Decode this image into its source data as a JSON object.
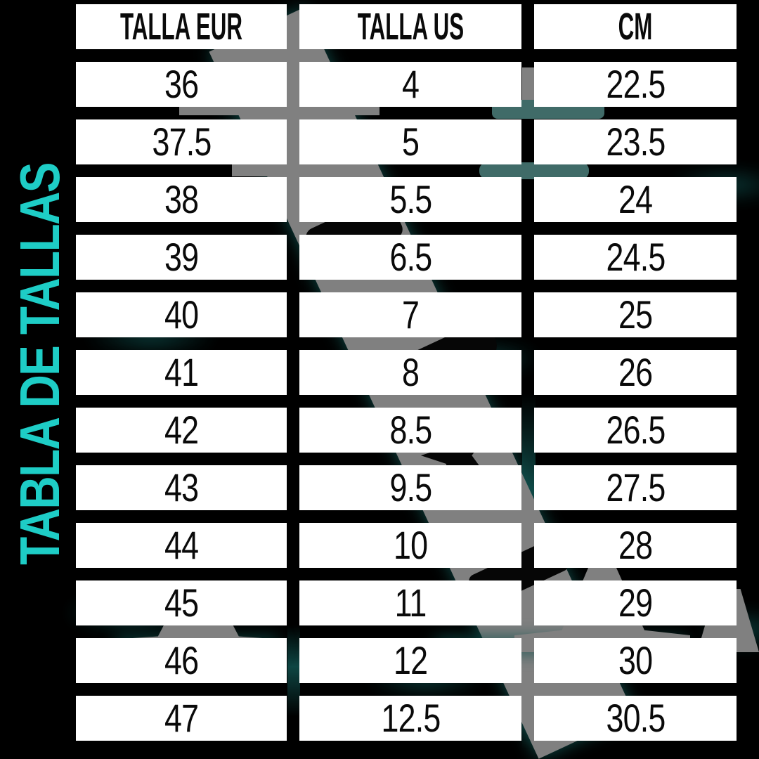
{
  "title": "TABLA DE TALLAS",
  "table": {
    "headers": [
      "TALLA EUR",
      "TALLA US",
      "CM"
    ],
    "rows": [
      [
        "36",
        "4",
        "22.5"
      ],
      [
        "37.5",
        "5",
        "23.5"
      ],
      [
        "38",
        "5.5",
        "24"
      ],
      [
        "39",
        "6.5",
        "24.5"
      ],
      [
        "40",
        "7",
        "25"
      ],
      [
        "41",
        "8",
        "26"
      ],
      [
        "42",
        "8.5",
        "26.5"
      ],
      [
        "43",
        "9.5",
        "27.5"
      ],
      [
        "44",
        "10",
        "28"
      ],
      [
        "45",
        "11",
        "29"
      ],
      [
        "46",
        "12",
        "30"
      ],
      [
        "47",
        "12.5",
        "30.5"
      ]
    ]
  },
  "icons": {
    "watermark_star": "★"
  },
  "colors": {
    "background": "#000000",
    "accent": "#1ECDC6",
    "cell_bg": "#FFFFFF",
    "cell_text": "#0A0A0A",
    "watermark_gray": "#808080",
    "watermark_teal": "#406B68",
    "glow_teal": "#0E4B49"
  },
  "chart_data": {
    "type": "table",
    "title": "TABLA DE TALLAS",
    "columns": [
      "TALLA EUR",
      "TALLA US",
      "CM"
    ],
    "rows": [
      [
        36,
        4,
        22.5
      ],
      [
        37.5,
        5,
        23.5
      ],
      [
        38,
        5.5,
        24
      ],
      [
        39,
        6.5,
        24.5
      ],
      [
        40,
        7,
        25
      ],
      [
        41,
        8,
        26
      ],
      [
        42,
        8.5,
        26.5
      ],
      [
        43,
        9.5,
        27.5
      ],
      [
        44,
        10,
        28
      ],
      [
        45,
        11,
        29
      ],
      [
        46,
        12,
        30
      ],
      [
        47,
        12.5,
        30.5
      ]
    ]
  }
}
